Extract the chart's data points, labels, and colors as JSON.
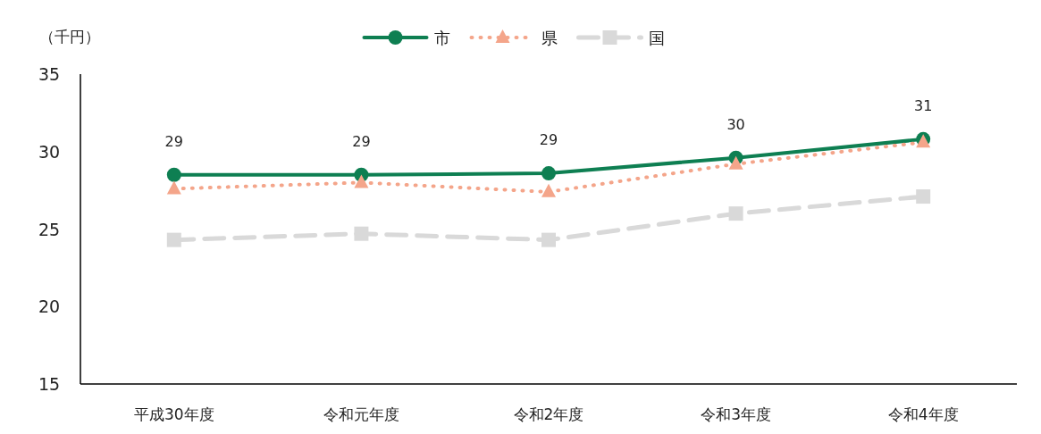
{
  "chart_data": {
    "type": "line",
    "ylabel": "（千円）",
    "categories": [
      "平成30年度",
      "令和元年度",
      "令和2年度",
      "令和3年度",
      "令和4年度"
    ],
    "series": [
      {
        "name": "市",
        "color": "#0e7f52",
        "marker": "circle",
        "line_style": "solid",
        "values": [
          28.5,
          28.5,
          28.6,
          29.6,
          30.8
        ],
        "value_labels": [
          "29",
          "29",
          "29",
          "30",
          "31"
        ]
      },
      {
        "name": "県",
        "color": "#f4a58a",
        "marker": "triangle",
        "line_style": "dotted",
        "values": [
          27.6,
          28.0,
          27.4,
          29.2,
          30.6
        ]
      },
      {
        "name": "国",
        "color": "#d9d9d9",
        "marker": "square",
        "line_style": "dashed",
        "values": [
          24.3,
          24.7,
          24.3,
          26.0,
          27.1
        ]
      }
    ],
    "ylim": [
      15,
      35
    ],
    "yticks": [
      15,
      20,
      25,
      30,
      35
    ],
    "grid": false,
    "legend": "top"
  }
}
